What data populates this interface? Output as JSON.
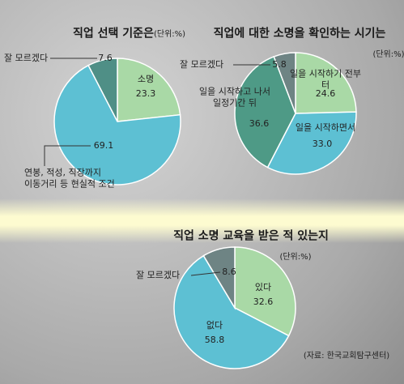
{
  "chart_data": [
    {
      "type": "pie",
      "title": "직업 선택 기준은",
      "unit": "(단위:%)",
      "categories": [
        "소명",
        "연봉, 적성, 직장까지\n이동거리 등 현실적 조건",
        "잘 모르겠다"
      ],
      "values": [
        23.3,
        69.1,
        7.6
      ],
      "colors": [
        "#a9d9a6",
        "#5dc0d3",
        "#4f8f86"
      ]
    },
    {
      "type": "pie",
      "title": "직업에 대한 소명을 확인하는 시기는",
      "unit": "(단위:%)",
      "categories": [
        "일을 시작하기 전부터",
        "일을 시작하면서",
        "일을 시작하고 나서\n일정기간 뒤",
        "잘 모르겠다"
      ],
      "values": [
        24.6,
        33.0,
        36.6,
        5.8
      ],
      "value_labels": [
        "24.6",
        "33.0",
        "36.6",
        "5.8"
      ],
      "colors": [
        "#a9d9a6",
        "#5dc0d3",
        "#4e9a86",
        "#6e8484"
      ]
    },
    {
      "type": "pie",
      "title": "직업 소명 교육을 받은 적 있는지",
      "unit": "(단위:%)",
      "categories": [
        "있다",
        "없다",
        "잘 모르겠다"
      ],
      "values": [
        32.6,
        58.8,
        8.6
      ],
      "colors": [
        "#a9d9a6",
        "#5dc0d3",
        "#6e8484"
      ],
      "source": "(자료: 한국교회탐구센터)"
    }
  ]
}
